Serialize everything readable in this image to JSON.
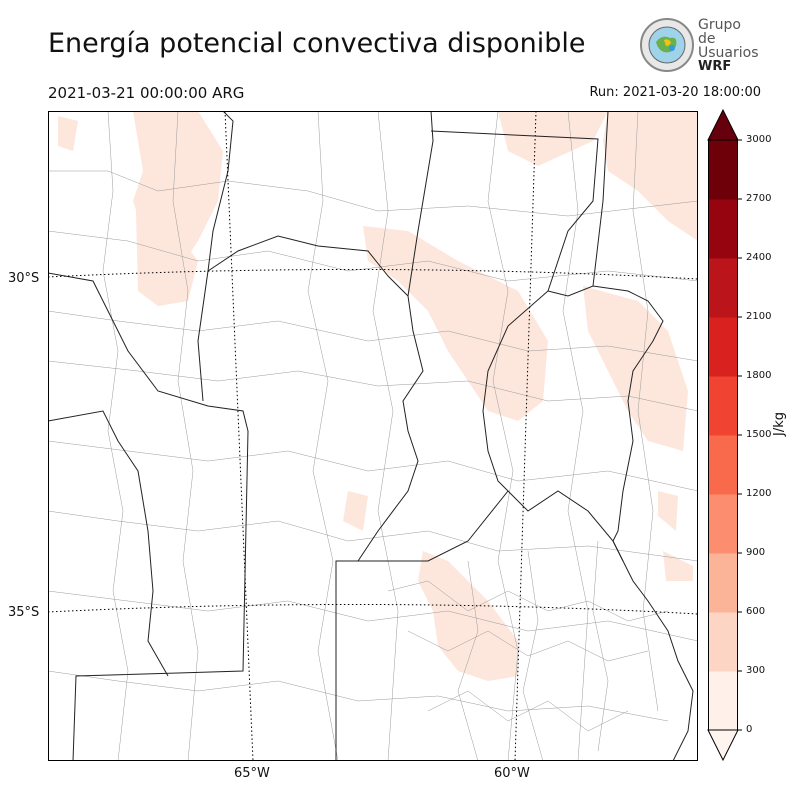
{
  "header": {
    "title": "Energía potencial convectiva disponible",
    "valid_time": "2021-03-21 00:00:00 ARG",
    "run_time": "Run: 2021-03-20 18:00:00"
  },
  "logo": {
    "line1": "Grupo de",
    "line2": "Usuarios",
    "line3": "WRF"
  },
  "map": {
    "lat_labels": [
      "30°S",
      "35°S"
    ],
    "lon_labels": [
      "65°W",
      "60°W"
    ]
  },
  "colorbar": {
    "unit": "J/kg",
    "ticks": [
      "0",
      "300",
      "600",
      "900",
      "1200",
      "1500",
      "1800",
      "2100",
      "2400",
      "2700",
      "3000"
    ],
    "colors": [
      "#fff0e9",
      "#fdd5c4",
      "#fcb499",
      "#fc8e6f",
      "#f9694c",
      "#f14332",
      "#d9221f",
      "#bb141a",
      "#96050f",
      "#6d0009"
    ],
    "over_color": "#67000d",
    "under_color": "#fff5f0"
  },
  "chart_data": {
    "type": "heatmap",
    "variable": "Energía potencial convectiva disponible",
    "units": "J/kg",
    "levels": [
      0,
      300,
      600,
      900,
      1200,
      1500,
      1800,
      2100,
      2400,
      2700,
      3000
    ],
    "extend": "both"
  }
}
